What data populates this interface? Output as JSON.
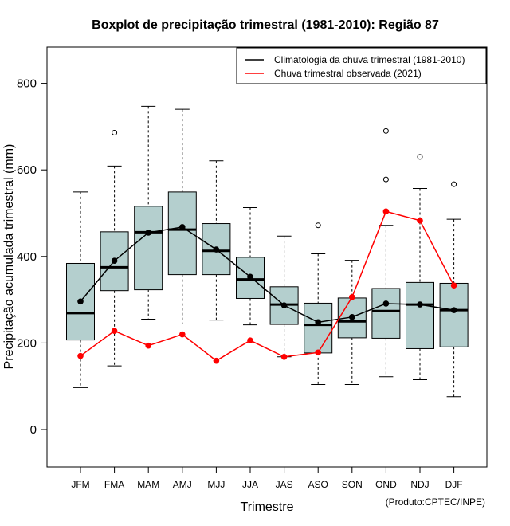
{
  "chart_data": {
    "type": "boxplot",
    "title": "Boxplot de precipitação trimestral (1981-2010): Região 87",
    "xlabel": "Trimestre",
    "ylabel": "Precipitação acumulada trimestral (mm)",
    "credit": "(Produto:CPTEC/INPE)",
    "ylim": [
      -90,
      880
    ],
    "yticks": [
      0,
      200,
      400,
      600,
      800
    ],
    "categories": [
      "JFM",
      "FMA",
      "MAM",
      "AMJ",
      "MJJ",
      "JJA",
      "JAS",
      "ASO",
      "SON",
      "OND",
      "NDJ",
      "DJF"
    ],
    "boxes": [
      {
        "min": 97,
        "q1": 207,
        "median": 269,
        "q3": 384,
        "max": 549,
        "outliers": []
      },
      {
        "min": 147,
        "q1": 321,
        "median": 375,
        "q3": 457,
        "max": 609,
        "outliers": [
          686
        ]
      },
      {
        "min": 255,
        "q1": 323,
        "median": 456,
        "q3": 516,
        "max": 747,
        "outliers": []
      },
      {
        "min": 244,
        "q1": 358,
        "median": 462,
        "q3": 549,
        "max": 740,
        "outliers": []
      },
      {
        "min": 253,
        "q1": 358,
        "median": 413,
        "q3": 476,
        "max": 621,
        "outliers": []
      },
      {
        "min": 242,
        "q1": 303,
        "median": 347,
        "q3": 398,
        "max": 513,
        "outliers": []
      },
      {
        "min": 168,
        "q1": 243,
        "median": 289,
        "q3": 330,
        "max": 447,
        "outliers": []
      },
      {
        "min": 104,
        "q1": 177,
        "median": 242,
        "q3": 292,
        "max": 406,
        "outliers": [
          472
        ]
      },
      {
        "min": 104,
        "q1": 212,
        "median": 250,
        "q3": 304,
        "max": 391,
        "outliers": []
      },
      {
        "min": 122,
        "q1": 211,
        "median": 274,
        "q3": 326,
        "max": 472,
        "outliers": [
          578,
          690
        ]
      },
      {
        "min": 115,
        "q1": 187,
        "median": 289,
        "q3": 340,
        "max": 557,
        "outliers": [
          630
        ]
      },
      {
        "min": 76,
        "q1": 191,
        "median": 276,
        "q3": 338,
        "max": 486,
        "outliers": [
          567
        ]
      }
    ],
    "series": [
      {
        "name": "Climatologia da chuva trimestral (1981-2010)",
        "color": "#000000",
        "values": [
          296,
          390,
          455,
          468,
          416,
          353,
          287,
          248,
          260,
          291,
          289,
          276
        ]
      },
      {
        "name": "Chuva trimestral observada (2021)",
        "color": "#ff0000",
        "values": [
          170,
          228,
          194,
          220,
          159,
          206,
          168,
          178,
          306,
          504,
          483,
          333
        ]
      }
    ],
    "box_fill": "#b4cfce",
    "legend_position": "top-right"
  }
}
